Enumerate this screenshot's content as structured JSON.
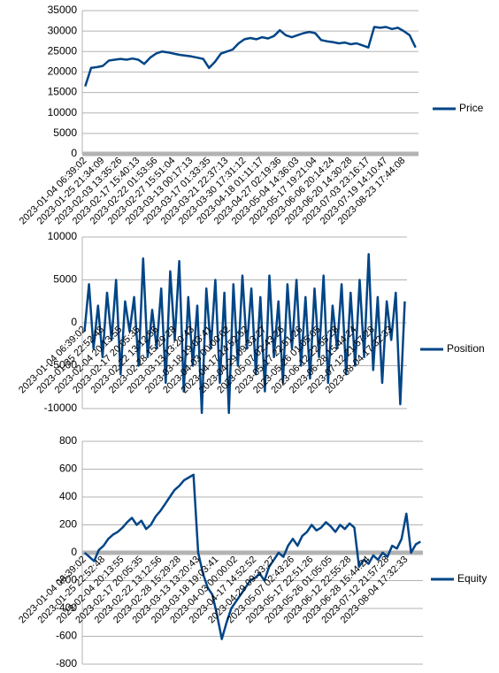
{
  "chart_data": [
    {
      "type": "line",
      "categories": [
        "2023-01-04 06:39:02",
        null,
        null,
        "2023-01-25 21:34:09",
        null,
        null,
        "2023-02-03 13:35:26",
        null,
        null,
        "2023-02-17 15:40:13",
        null,
        null,
        "2023-02-22 01:53:56",
        null,
        null,
        "2023-02-27 15:51:04",
        null,
        null,
        "2023-03-13 00:17:13",
        null,
        null,
        "2023-03-17 01:33:35",
        null,
        null,
        "2023-03-21 22:37:13",
        null,
        null,
        "2023-03-30 17:31:12",
        null,
        null,
        "2023-04-18 01:11:17",
        null,
        null,
        "2023-04-27 02:19:36",
        null,
        null,
        "2023-05-04 14:36:03",
        null,
        null,
        "2023-05-17 19:21:04",
        null,
        null,
        "2023-06-06 20:14:24",
        null,
        null,
        "2023-06-20 14:30:28",
        null,
        null,
        "2023-07-03 23:16:17",
        null,
        null,
        "2023-07-19 14:10:47",
        null,
        null,
        "2023-08-23 17:44:08",
        null,
        null
      ],
      "series": [
        {
          "name": "Price",
          "color": "#004586",
          "values": [
            16500,
            21000,
            21200,
            21500,
            22800,
            23000,
            23200,
            23000,
            23300,
            23000,
            22000,
            23500,
            24500,
            25000,
            24800,
            24500,
            24200,
            24000,
            23800,
            23500,
            23200,
            21000,
            22500,
            24500,
            25000,
            25500,
            27000,
            28000,
            28300,
            28000,
            28500,
            28200,
            28800,
            30200,
            29000,
            28500,
            29000,
            29500,
            29800,
            29500,
            27800,
            27500,
            27300,
            27000,
            27200,
            26800,
            27000,
            26500,
            26000,
            31000,
            30800,
            31000,
            30500,
            30800,
            30000,
            29000,
            26000
          ]
        }
      ],
      "ylim": [
        0,
        35000
      ],
      "yticks": [
        0,
        5000,
        10000,
        15000,
        20000,
        25000,
        30000,
        35000
      ],
      "grid": true,
      "legend": "right",
      "zero_line": true
    },
    {
      "type": "line",
      "categories": [
        "2023-01-04 06:39:02",
        null,
        null,
        null,
        "2023-01-25 22:52:48",
        null,
        null,
        null,
        "2023-02-04 20:13:55",
        null,
        null,
        null,
        "2023-02-17 20:05:35",
        null,
        null,
        null,
        "2023-02-22 13:12:56",
        null,
        null,
        null,
        "2023-02-28 15:29:28",
        null,
        null,
        null,
        "2023-03-13 13:20:43",
        null,
        null,
        null,
        "2023-03-18 19:03:41",
        null,
        null,
        null,
        "2023-04-03 00:00:02",
        null,
        null,
        null,
        "2023-04-17 14:52:52",
        null,
        null,
        null,
        "2023-04-29 09:33:27",
        null,
        null,
        null,
        "2023-05-07 02:43:26",
        null,
        null,
        null,
        "2023-05-17 22:51:26",
        null,
        null,
        null,
        "2023-05-26 01:05:05",
        null,
        null,
        null,
        "2023-06-12 22:55:28",
        null,
        null,
        null,
        "2023-06-28 15:44:24",
        null,
        null,
        null,
        "2023-07-12 21:57:28",
        null,
        null,
        null,
        "2023-08-04 17:32:33",
        null,
        null,
        null
      ],
      "series": [
        {
          "name": "Position",
          "color": "#004586",
          "values": [
            -1000,
            4500,
            -3000,
            2000,
            -4000,
            3500,
            -2000,
            5000,
            -6000,
            2500,
            -1000,
            3000,
            -5000,
            7500,
            -4000,
            1500,
            -3000,
            4000,
            -7000,
            6000,
            -2000,
            7200,
            -8000,
            3000,
            -5000,
            2000,
            -10500,
            4000,
            -3000,
            5000,
            -7000,
            3500,
            -10500,
            4500,
            -5000,
            5500,
            -3000,
            4000,
            -6000,
            3000,
            -8000,
            5500,
            -4000,
            2500,
            -7000,
            4500,
            -3000,
            5000,
            -5000,
            3000,
            -6500,
            4000,
            -4000,
            5500,
            -7000,
            2000,
            -3000,
            4500,
            -6000,
            3500,
            -5000,
            5000,
            -4000,
            8000,
            -5500,
            3000,
            -7000,
            2500,
            -2000,
            3500,
            -9500,
            2500
          ]
        }
      ],
      "ylim": [
        -10000,
        10000
      ],
      "yticks": [
        -10000,
        -5000,
        0,
        5000,
        10000
      ],
      "grid": true,
      "legend": "right",
      "zero_line": false
    },
    {
      "type": "line",
      "categories": [
        "2023-01-04 06:39:02",
        null,
        null,
        null,
        "2023-01-25 22:52:48",
        null,
        null,
        null,
        "2023-02-04 20:13:55",
        null,
        null,
        null,
        "2023-02-17 20:05:35",
        null,
        null,
        null,
        "2023-02-22 13:12:56",
        null,
        null,
        null,
        "2023-02-28 15:29:28",
        null,
        null,
        null,
        "2023-03-13 13:20:43",
        null,
        null,
        null,
        "2023-03-18 19:03:41",
        null,
        null,
        null,
        "2023-04-03 00:00:02",
        null,
        null,
        null,
        "2023-04-17 14:52:52",
        null,
        null,
        null,
        "2023-04-29 09:33:27",
        null,
        null,
        null,
        "2023-05-07 02:43:26",
        null,
        null,
        null,
        "2023-05-17 22:51:26",
        null,
        null,
        null,
        "2023-05-26 01:05:05",
        null,
        null,
        null,
        "2023-06-12 22:55:28",
        null,
        null,
        null,
        "2023-06-28 15:44:24",
        null,
        null,
        null,
        "2023-07-12 21:57:28",
        null,
        null,
        null,
        "2023-08-04 17:32:33",
        null,
        null,
        null
      ],
      "series": [
        {
          "name": "Equity",
          "color": "#004586",
          "values": [
            0,
            -30,
            -60,
            20,
            50,
            100,
            130,
            150,
            180,
            220,
            250,
            200,
            230,
            170,
            200,
            260,
            300,
            350,
            400,
            450,
            480,
            520,
            540,
            560,
            0,
            -150,
            -250,
            -300,
            -450,
            -620,
            -500,
            -400,
            -350,
            -300,
            -250,
            -200,
            -180,
            -150,
            -200,
            -100,
            -50,
            0,
            -30,
            50,
            100,
            50,
            120,
            150,
            200,
            160,
            180,
            220,
            190,
            150,
            200,
            170,
            210,
            180,
            -100,
            -50,
            -80,
            -20,
            -50,
            0,
            -30,
            50,
            30,
            100,
            280,
            0,
            60,
            80
          ]
        }
      ],
      "ylim": [
        -800,
        800
      ],
      "yticks": [
        -800,
        -600,
        -400,
        -200,
        0,
        200,
        400,
        600,
        800
      ],
      "grid": true,
      "legend": "right",
      "zero_line": true
    }
  ]
}
